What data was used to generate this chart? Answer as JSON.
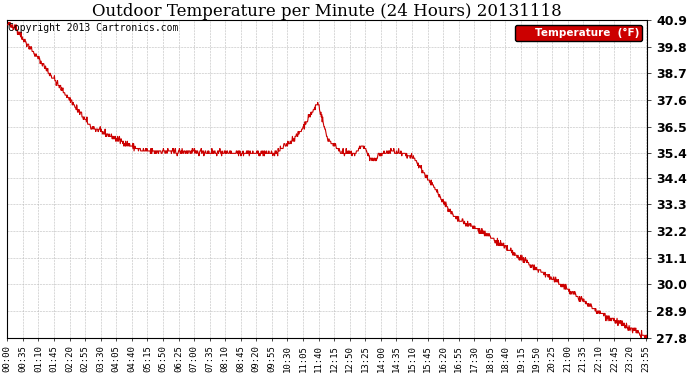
{
  "title": "Outdoor Temperature per Minute (24 Hours) 20131118",
  "copyright_text": "Copyright 2013 Cartronics.com",
  "legend_label": "Temperature  (°F)",
  "line_color": "#cc0000",
  "legend_bg_color": "#cc0000",
  "legend_text_color": "#ffffff",
  "bg_color": "#ffffff",
  "grid_color": "#bbbbbb",
  "y_min": 27.8,
  "y_max": 40.9,
  "y_ticks": [
    27.8,
    28.9,
    30.0,
    31.1,
    32.2,
    33.3,
    34.4,
    35.4,
    36.5,
    37.6,
    38.7,
    39.8,
    40.9
  ],
  "x_tick_labels": [
    "00:00",
    "00:35",
    "01:10",
    "01:45",
    "02:20",
    "02:55",
    "03:30",
    "04:05",
    "04:40",
    "05:15",
    "05:50",
    "06:25",
    "07:00",
    "07:35",
    "08:10",
    "08:45",
    "09:20",
    "09:55",
    "10:30",
    "11:05",
    "11:40",
    "12:15",
    "12:50",
    "13:25",
    "14:00",
    "14:35",
    "15:10",
    "15:45",
    "16:20",
    "16:55",
    "17:30",
    "18:05",
    "18:40",
    "19:15",
    "19:50",
    "20:25",
    "21:00",
    "21:35",
    "22:10",
    "22:45",
    "23:20",
    "23:55"
  ],
  "title_fontsize": 12,
  "tick_fontsize": 6.5,
  "copyright_fontsize": 7,
  "ylabel_fontsize": 9
}
